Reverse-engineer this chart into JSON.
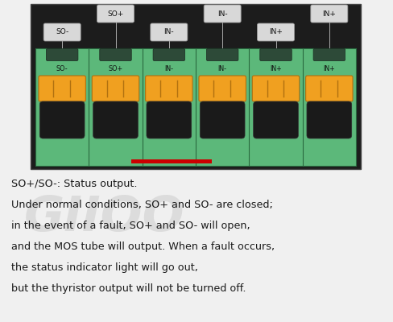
{
  "bg_color": "#f0f0f0",
  "panel_color": "#1c1c1c",
  "terminal_green": "#5cb87a",
  "terminal_dark_green": "#3a7a50",
  "orange_color": "#f0a020",
  "orange_dark": "#b07010",
  "hole_color": "#1a1a1a",
  "tag_bg": "#d8d8d8",
  "tag_edge": "#999999",
  "n_terminals": 6,
  "terminal_labels": [
    "SO-",
    "SO+",
    "IN-",
    "IN-",
    "IN+",
    "IN+"
  ],
  "upper_tags": [
    {
      "text": "SO+",
      "col": 1
    },
    {
      "text": "IN-",
      "col": 3
    },
    {
      "text": "IN+",
      "col": 5
    }
  ],
  "lower_tags": [
    {
      "text": "SO-",
      "col": 0
    },
    {
      "text": "IN-",
      "col": 2
    },
    {
      "text": "IN+",
      "col": 4
    }
  ],
  "text_lines": [
    "SO+/SO-: Status output.",
    "Under normal conditions, SO+ and SO- are closed;",
    "in the event of a fault, SO+ and SO- will open,",
    "and the MOS tube will output. When a fault occurs,",
    "the status indicator light will go out,",
    "but the thyristor output will not be turned off."
  ],
  "text_fontsize": 9.2,
  "text_color": "#1a1a1a",
  "watermark_text": "GⅠⅠOO",
  "wm_color": "#cccccc",
  "wm_alpha": 0.55,
  "wm_fontsize": 44
}
